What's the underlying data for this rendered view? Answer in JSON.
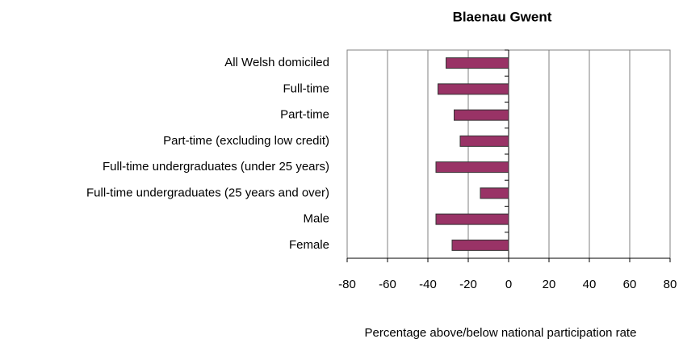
{
  "chart_data": {
    "type": "bar",
    "orientation": "horizontal",
    "title": "Blaenau Gwent",
    "x_label": "Percentage above/below national participation rate",
    "categories": [
      "All Welsh domiciled",
      "Full-time",
      "Part-time",
      "Part-time (excluding low credit)",
      "Full-time undergraduates (under 25 years)",
      "Full-time undergraduates (25 years and over)",
      "Male",
      "Female"
    ],
    "values": [
      -31,
      -35,
      -27,
      -24,
      -36,
      -14,
      -36,
      -28
    ],
    "color": "#993366",
    "xlim": [
      -80,
      80
    ],
    "xticks": [
      -80,
      -60,
      -40,
      -20,
      0,
      20,
      40,
      60,
      80
    ],
    "grid": true
  }
}
